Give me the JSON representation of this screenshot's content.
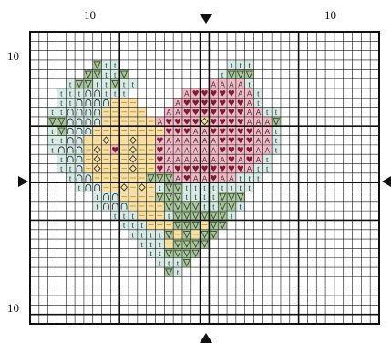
{
  "labels": {
    "top_left": "10",
    "top_right": "10",
    "left_top": "10",
    "left_bottom": "10"
  },
  "colors": {
    "grid": "#111111",
    "background": "#ffffff",
    "pale_teal": "#d6ebe6",
    "sage": "#a9c79c",
    "butter": "#f7e0a1",
    "pink": "#f3b9c6",
    "dark_rose": "#7a1f33",
    "symbol": "#333333"
  },
  "legend_symbols": {
    "t": "t",
    "A": "A",
    "heart": "♥",
    "arch": "∩",
    "diamond": "◇"
  },
  "chart_data": {
    "type": "heatmap",
    "columns": 39,
    "rows": 31,
    "note_symbols": [
      "t",
      "v",
      "n",
      "o",
      "A",
      "h"
    ],
    "rows_data": [
      ".......................................",
      ".......................................",
      ".......................................",
      ".......vtt............ttt..............",
      "......vvttv..........tvvv..............",
      "....tvvttvtt........AAAAt..............",
      "...tttnnttt......AhhhhhAAt.............",
      "...ttnnnnYYY....AhhhhhhhAt.............",
      "..ttnnnnYYYYY..AAhhhhhhhAAtt...........",
      "..vvnnnnYYYYYYAhhhhohhhhAAAv...........",
      "..tvnnnYYYYYYYYhhhAAhhhhhAAt...........",
      "..ttnnYYoYYoYYhAAAAAAhhhhAAt...........",
      "..tnnnYoYhYoYYhAAAAAAhhhhAAt...........",
      "...tnnYoYYYoYYhAAAAAAAhAhAt............",
      "...ttnYoYYYoYYhAhhhhhhhhAtt............",
      "....tnnYYYYYYvvvAhAAhAAttt.............",
      ".....tnnYYoYoYtvvtttttttt..............",
      ".......tnnYYYYvvvttttvvv...............",
      ".......tnnnYYYYvvvvttvvt...............",
      ".........tttYYYtvvvvvvt................",
      "..........tttYYYvvvYvv.................",
      "...........ttttvYvYvv..................",
      "............tttYvvvv...................",
      ".............ttvvvv....................",
      "..............tttv.....................",
      "...............vt......................",
      ".......................................",
      ".......................................",
      ".......................................",
      ".......................................",
      "......................................."
    ]
  }
}
